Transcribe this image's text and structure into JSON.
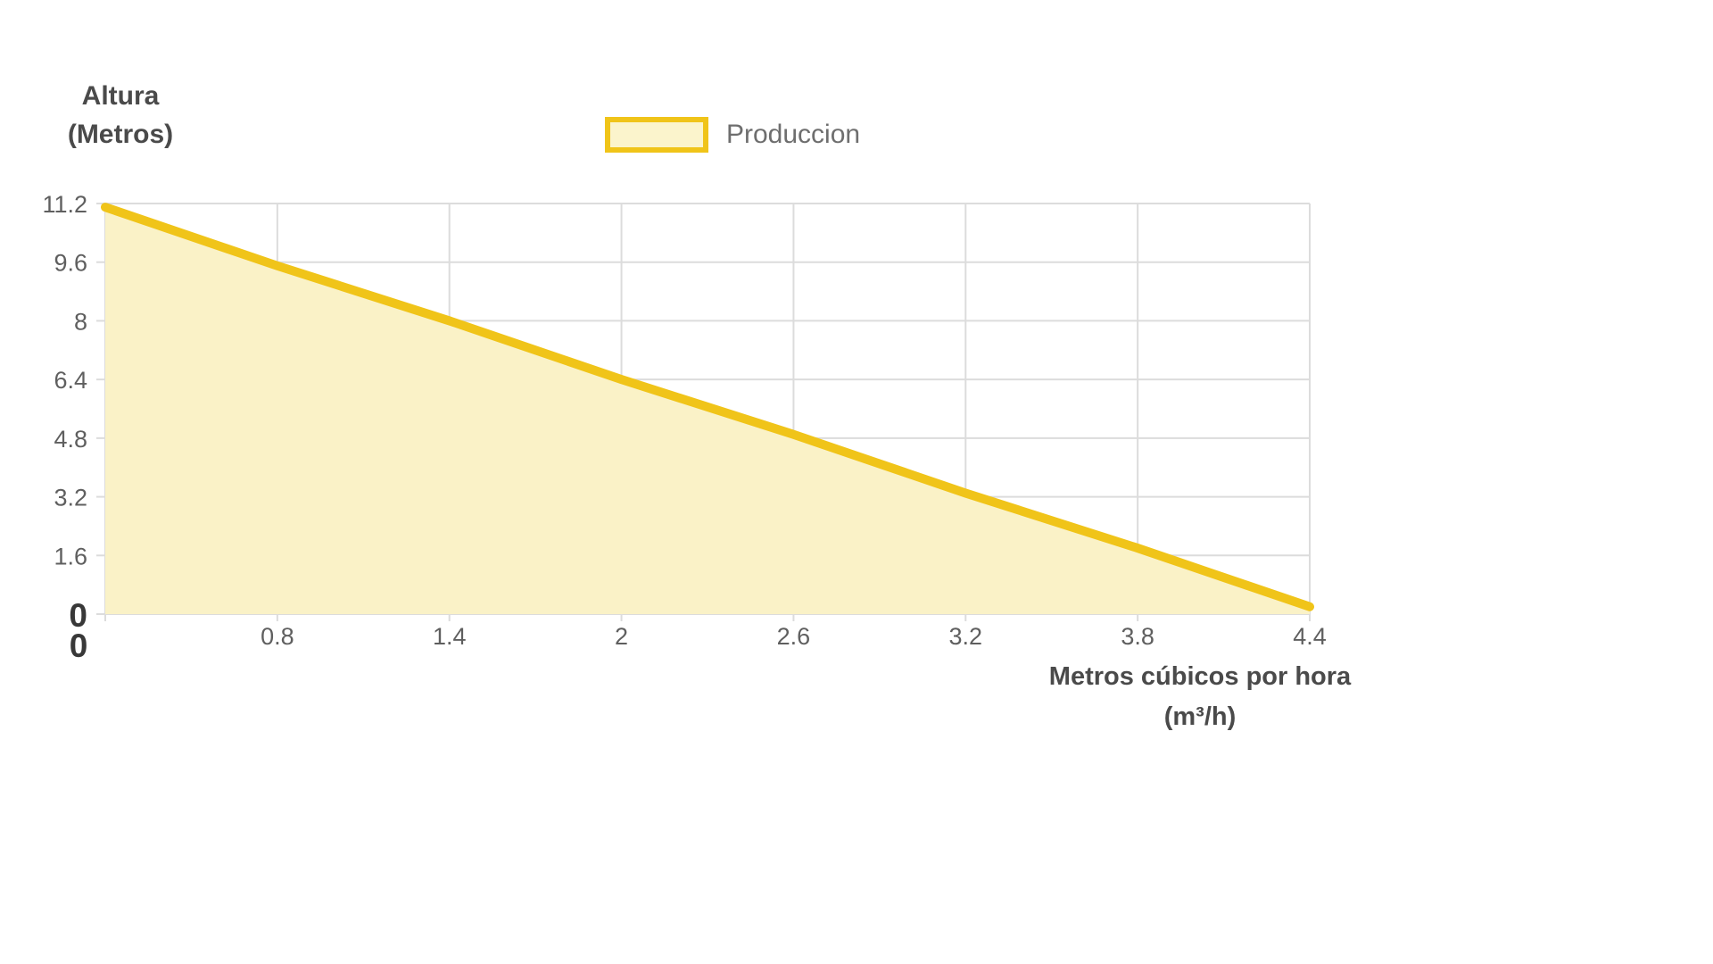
{
  "chart_data": {
    "type": "area",
    "title": "",
    "categories": [
      "0",
      "0.8",
      "1.4",
      "2",
      "2.6",
      "3.2",
      "3.8",
      "4.4"
    ],
    "series": [
      {
        "name": "Produccion",
        "values": [
          11.1,
          9.5,
          8.0,
          6.4,
          4.9,
          3.3,
          1.8,
          0.2
        ]
      }
    ],
    "xlabel": "Metros cúbicos por hora (m³/h)",
    "ylabel": "Altura (Metros)",
    "y_ticks": [
      11.2,
      9.6,
      8,
      6.4,
      4.8,
      3.2,
      1.6,
      0
    ],
    "ylim": [
      0,
      11.2
    ],
    "grid": true,
    "legend_position": "top"
  },
  "chart": {
    "y_axis": {
      "title_line1": "Altura",
      "title_line2": "(Metros)",
      "tick_labels": [
        "11.2",
        "9.6",
        "8",
        "6.4",
        "4.8",
        "3.2",
        "1.6",
        "0"
      ]
    },
    "x_axis": {
      "title_line1": "Metros cúbicos por hora",
      "title_line2": "(m³/h)",
      "tick_labels": [
        "0",
        "0.8",
        "1.4",
        "2",
        "2.6",
        "3.2",
        "3.8",
        "4.4"
      ]
    },
    "legend": {
      "label": "Produccion"
    },
    "colors": {
      "line": "#F0C419",
      "fill": "#FAF2C7",
      "grid": "#DCDCDC",
      "tick_text": "#5f5f5f",
      "zero_text": "#383838",
      "title_text": "#4a4a4a",
      "legend_text": "#6e6e6e"
    }
  }
}
